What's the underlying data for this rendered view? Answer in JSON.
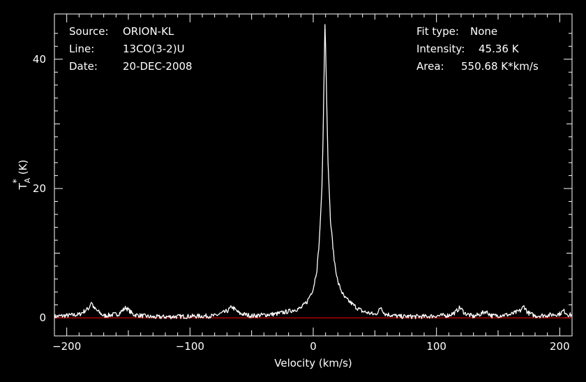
{
  "header": {
    "source_label": "Source:",
    "source_value": "ORION-KL",
    "line_label": "Line:",
    "line_value": "13CO(3-2)U",
    "date_label": "Date:",
    "date_value": "20-DEC-2008",
    "fit_label": "Fit type:",
    "fit_value": "None",
    "intensity_label": "Intensity:",
    "intensity_value": "45.36 K",
    "area_label": "Area:",
    "area_value": "550.68 K*km/s"
  },
  "colors": {
    "background": "#000000",
    "axes": "#ffffff",
    "spectrum": "#ffffff",
    "baseline": "#ff0000"
  },
  "chart_data": {
    "type": "line",
    "xlabel": "Velocity (km/s)",
    "ylabel_main": "T",
    "ylabel_sub": "A",
    "ylabel_sup": "*",
    "ylabel_unit": "(K)",
    "xlim": [
      -210,
      210
    ],
    "ylim": [
      -2.8,
      47
    ],
    "xticks": [
      -200,
      -100,
      0,
      100,
      200
    ],
    "xtick_labels": [
      "−200",
      "−100",
      "0",
      "100",
      "200"
    ],
    "yticks": [
      0,
      20,
      40
    ],
    "ytick_labels": [
      "0",
      "20",
      "40"
    ],
    "grid": false,
    "baseline_y": 0,
    "series": [
      {
        "x": [
          -210,
          -190,
          -182,
          -180,
          -178,
          -170,
          -158,
          -152,
          -146,
          -130,
          -110,
          -80,
          -70,
          -66,
          -60,
          -50,
          -30,
          -20,
          -10,
          -5,
          0,
          3,
          5,
          7,
          8,
          9,
          9.5,
          10,
          11,
          12,
          14,
          17,
          20,
          25,
          30,
          35,
          40,
          50,
          53,
          55,
          58,
          70,
          90,
          110,
          115,
          119,
          123,
          130,
          136,
          140,
          145,
          160,
          168,
          171,
          174,
          180,
          190,
          200,
          203,
          207,
          210
        ],
        "y": [
          0.2,
          0.5,
          1.5,
          2.5,
          1.5,
          0.3,
          0.6,
          1.6,
          0.5,
          0.1,
          0.2,
          0.3,
          1.0,
          1.7,
          0.7,
          0.3,
          0.6,
          1.0,
          1.5,
          2.5,
          4.5,
          7.5,
          12.0,
          20.0,
          28.0,
          40.0,
          45.36,
          42.0,
          33.0,
          24.0,
          15.0,
          9.0,
          5.5,
          3.2,
          2.4,
          1.6,
          1.0,
          0.5,
          1.0,
          1.7,
          0.6,
          0.2,
          0.2,
          0.4,
          0.8,
          1.6,
          0.7,
          0.2,
          0.6,
          1.0,
          0.3,
          0.5,
          1.1,
          1.8,
          0.8,
          0.3,
          0.4,
          0.6,
          1.1,
          0.5,
          0.4
        ]
      }
    ]
  }
}
